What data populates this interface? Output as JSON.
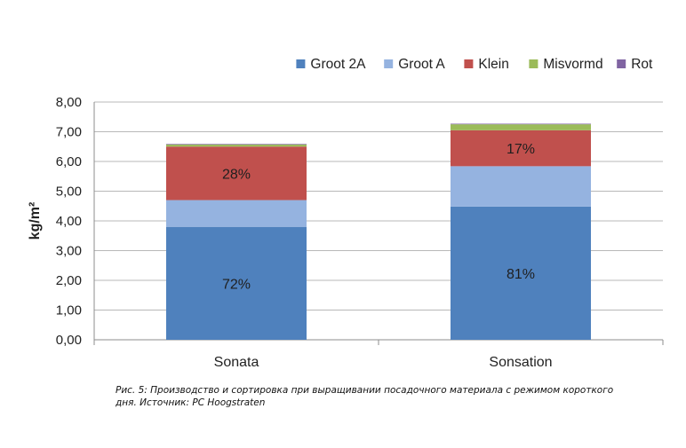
{
  "chart_data": {
    "type": "bar",
    "stacked": true,
    "title": "",
    "xlabel": "",
    "ylabel": "kg/m²",
    "ylim": [
      0,
      8
    ],
    "yticks": [
      "0,00",
      "1,00",
      "2,00",
      "3,00",
      "4,00",
      "5,00",
      "6,00",
      "7,00",
      "8,00"
    ],
    "grid": true,
    "legend_position": "top-right",
    "categories": [
      "Sonata",
      "Sonsation"
    ],
    "series": [
      {
        "name": "Groot 2A",
        "color": "#4f81bd",
        "values": [
          3.8,
          4.48
        ]
      },
      {
        "name": "Groot A",
        "color": "#95b3e0",
        "values": [
          0.9,
          1.36
        ]
      },
      {
        "name": "Klein",
        "color": "#c0504d",
        "values": [
          1.8,
          1.21
        ]
      },
      {
        "name": "Misvormd",
        "color": "#9bbb59",
        "values": [
          0.07,
          0.2
        ]
      },
      {
        "name": "Rot",
        "color": "#8064a2",
        "values": [
          0.02,
          0.02
        ]
      }
    ],
    "data_labels": [
      {
        "category": "Sonata",
        "series": "Groot 2A",
        "text": "72%"
      },
      {
        "category": "Sonata",
        "series": "Klein",
        "text": "28%"
      },
      {
        "category": "Sonsation",
        "series": "Groot 2A",
        "text": "81%"
      },
      {
        "category": "Sonsation",
        "series": "Klein",
        "text": "17%"
      }
    ]
  },
  "caption": {
    "line1": "Рис. 5: Производство и сортировка при выращивании посадочного материала с режимом короткого",
    "line2": "дня. Источник: PC Hoogstraten"
  }
}
